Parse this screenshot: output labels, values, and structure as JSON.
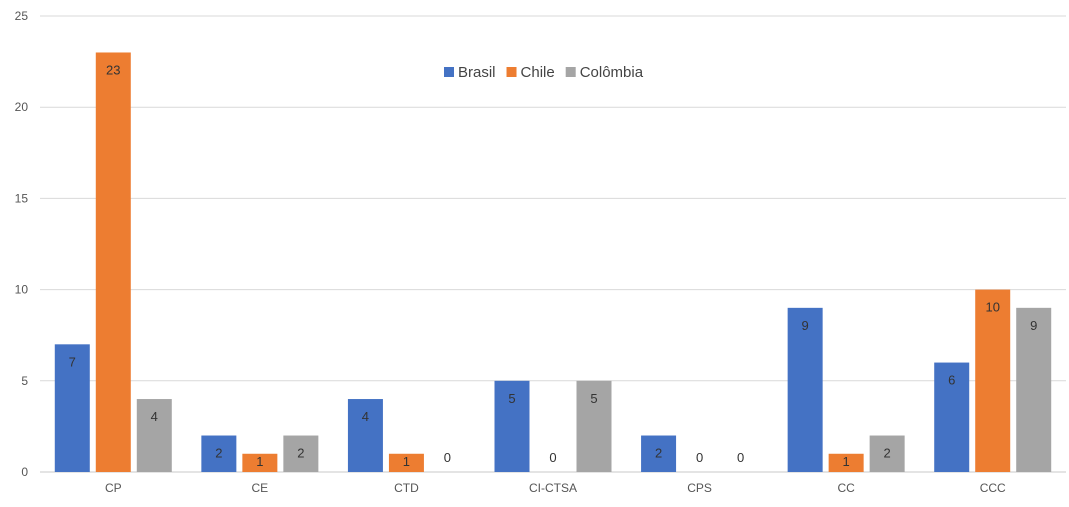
{
  "chart_data": {
    "type": "bar",
    "categories": [
      "CP",
      "CE",
      "CTD",
      "CI-CTSA",
      "CPS",
      "CC",
      "CCC"
    ],
    "series": [
      {
        "name": "Brasil",
        "values": [
          7,
          2,
          4,
          5,
          2,
          9,
          6
        ],
        "color": "#4472c4"
      },
      {
        "name": "Chile",
        "values": [
          23,
          1,
          1,
          0,
          0,
          1,
          10
        ],
        "color": "#ed7d31"
      },
      {
        "name": "Colômbia",
        "values": [
          4,
          2,
          0,
          5,
          0,
          2,
          9
        ],
        "color": "#a5a5a5"
      }
    ],
    "ylim": [
      0,
      25
    ],
    "yticks": [
      0,
      5,
      10,
      15,
      20,
      25
    ],
    "grid": true,
    "legend": "top-center",
    "data_labels": true
  }
}
